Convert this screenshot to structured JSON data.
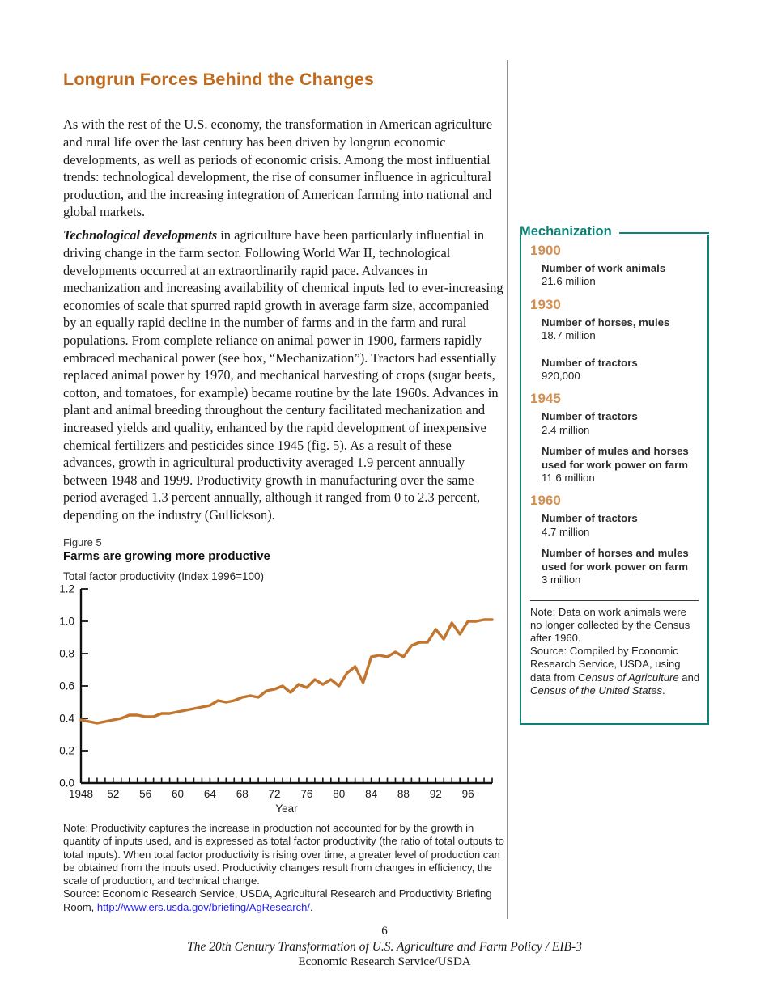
{
  "main": {
    "title": "Longrun Forces Behind the Changes",
    "para1": "As with the rest of the U.S. economy, the transformation in American agriculture and rural life over the last century has been driven by longrun economic developments, as well as periods of economic crisis. Among the most influential trends: technological development, the rise of consumer influence in agricultural production, and the increasing integration of American farming into national and global markets.",
    "para2_lead": "Technological developments",
    "para2_rest": " in agriculture have been particularly influential in driving change in the farm sector. Following World War II, technological developments occurred at an extraordinarily rapid pace. Advances in mechanization and increasing availability of chemical inputs led to ever-increasing economies of scale that spurred rapid growth in average farm size, accompanied by an equally rapid decline in the number of farms and in the farm and rural populations. From complete reliance on animal power in 1900, farmers rapidly embraced mechanical power (see box, “Mechanization”). Tractors had essentially replaced animal power by 1970, and mechanical harvesting of crops (sugar beets, cotton, and tomatoes, for example) became routine by the late 1960s.  Advances in plant and animal breeding throughout the century facilitated mechanization and increased yields and quality, enhanced by the rapid development of inexpensive chemical fertilizers and pesticides since 1945 (fig. 5). As a result of these advances, growth in agricultural productivity averaged 1.9 percent annually between 1948 and 1999. Productivity growth in manufacturing over the same period averaged 1.3 percent annually, although it ranged from 0 to 2.3 percent, depending on the industry (Gullickson)."
  },
  "figure": {
    "label": "Figure 5",
    "title": "Farms are growing more productive",
    "axis_title": "Total factor productivity (Index 1996=100)",
    "note": "Note: Productivity captures the increase in production not accounted for by the growth in quantity of inputs used, and is expressed as total factor productivity (the ratio of total outputs to total inputs). When total factor productivity is rising over time, a greater level of production can be obtained from the inputs used. Productivity changes result from changes in efficiency, the scale of production, and technical change.",
    "source_prefix": "Source: Economic Research Service, USDA, Agricultural Research and Productivity Briefing Room, ",
    "source_link": "http://www.ers.usda.gov/briefing/AgResearch/",
    "source_suffix": "."
  },
  "chart_data": {
    "type": "line",
    "title": "Farms are growing more productive",
    "xlabel": "Year",
    "ylabel": "Total factor productivity (Index 1996=100)",
    "xlim": [
      1948,
      1999
    ],
    "ylim": [
      0.0,
      1.2
    ],
    "ytick_step": 0.2,
    "ytick_labels": [
      "0.0",
      "0.2",
      "0.4",
      "0.6",
      "0.8",
      "1.0",
      "1.2"
    ],
    "xtick_labels": [
      "1948",
      "52",
      "56",
      "60",
      "64",
      "68",
      "72",
      "76",
      "80",
      "84",
      "88",
      "92",
      "96"
    ],
    "xtick_label_years": [
      1948,
      1952,
      1956,
      1960,
      1964,
      1968,
      1972,
      1976,
      1980,
      1984,
      1988,
      1992,
      1996
    ],
    "grid": false,
    "legend": "none",
    "line_color": "#c2752c",
    "axis_color": "#111111",
    "x": [
      1948,
      1949,
      1950,
      1951,
      1952,
      1953,
      1954,
      1955,
      1956,
      1957,
      1958,
      1959,
      1960,
      1961,
      1962,
      1963,
      1964,
      1965,
      1966,
      1967,
      1968,
      1969,
      1970,
      1971,
      1972,
      1973,
      1974,
      1975,
      1976,
      1977,
      1978,
      1979,
      1980,
      1981,
      1982,
      1983,
      1984,
      1985,
      1986,
      1987,
      1988,
      1989,
      1990,
      1991,
      1992,
      1993,
      1994,
      1995,
      1996,
      1997,
      1998,
      1999
    ],
    "y": [
      0.39,
      0.38,
      0.37,
      0.38,
      0.39,
      0.4,
      0.42,
      0.42,
      0.41,
      0.41,
      0.43,
      0.43,
      0.44,
      0.45,
      0.46,
      0.47,
      0.48,
      0.51,
      0.5,
      0.51,
      0.53,
      0.54,
      0.53,
      0.57,
      0.58,
      0.6,
      0.56,
      0.61,
      0.59,
      0.64,
      0.61,
      0.64,
      0.6,
      0.68,
      0.72,
      0.62,
      0.78,
      0.79,
      0.78,
      0.81,
      0.78,
      0.85,
      0.87,
      0.87,
      0.95,
      0.89,
      0.99,
      0.92,
      1.0,
      1.0,
      1.01,
      1.01
    ]
  },
  "sidebar": {
    "box_title": "Mechanization",
    "entries": [
      {
        "year": "1900",
        "items": [
          {
            "label": "Number of work animals",
            "value": "21.6 million"
          }
        ]
      },
      {
        "year": "1930",
        "items": [
          {
            "label": "Number of horses, mules",
            "value": "18.7 million"
          },
          {
            "label": "Number of tractors",
            "value": "920,000"
          }
        ]
      },
      {
        "year": "1945",
        "items": [
          {
            "label": "Number of tractors",
            "value": "2.4 million"
          },
          {
            "label": "Number of mules and horses used for work power on farm",
            "value": "11.6 million"
          }
        ]
      },
      {
        "year": "1960",
        "items": [
          {
            "label": "Number of tractors",
            "value": "4.7 million"
          },
          {
            "label": "Number of horses and mules used for work power on farm",
            "value": "3 million"
          }
        ]
      }
    ],
    "note": "Note: Data on work animals were no longer collected by the Census after 1960.",
    "source": {
      "p1": "Source: Compiled by Economic Research Service, USDA, using data from ",
      "i1": "Census of Agriculture",
      "p2": " and ",
      "i2": "Census of the United States",
      "p3": "."
    }
  },
  "footer": {
    "page_number": "6",
    "pub_title": "The 20th Century Transformation of U.S. Agriculture and Farm Policy / EIB-3",
    "org": "Economic Research Service/USDA"
  },
  "colors": {
    "heading_orange": "#bf6a1c",
    "year_orange": "#d28f51",
    "teal": "#0d8276",
    "chart_line": "#c2752c",
    "link_blue": "#2323ee",
    "divider_gray": "#8f8f8f"
  }
}
